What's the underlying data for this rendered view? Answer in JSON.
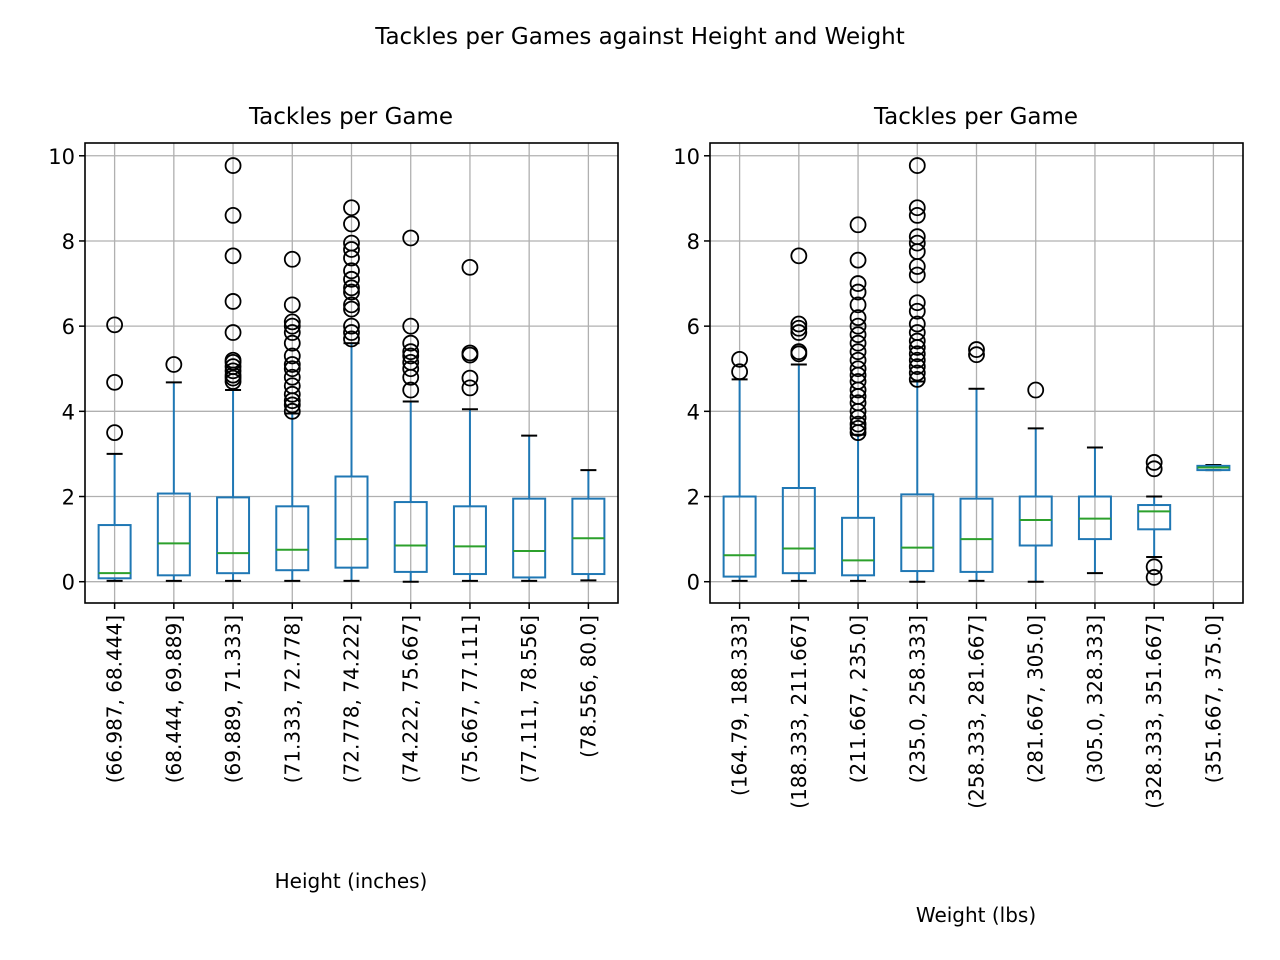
{
  "figure": {
    "suptitle": "Tackles per Games against Height and Weight"
  },
  "colors": {
    "box": "#1f77b4",
    "median": "#2ca02c",
    "grid": "#b0b0b0",
    "flier": "#000000",
    "axes": "#000000"
  },
  "chart_data": [
    {
      "type": "boxplot",
      "title": "Tackles per Game",
      "xlabel": "Height (inches)",
      "ylabel": "",
      "ylim": [
        -0.5,
        10.3
      ],
      "yticks": [
        0,
        2,
        4,
        6,
        8,
        10
      ],
      "grid": true,
      "categories": [
        "(66.987, 68.444]",
        "(68.444, 69.889]",
        "(69.889, 71.333]",
        "(71.333, 72.778]",
        "(72.778, 74.222]",
        "(74.222, 75.667]",
        "(75.667, 77.111]",
        "(77.111, 78.556]",
        "(78.556, 80.0]"
      ],
      "boxes": [
        {
          "whislo": 0.02,
          "q1": 0.08,
          "med": 0.2,
          "q3": 1.33,
          "whishi": 3.0,
          "fliers": [
            3.5,
            4.68,
            6.03
          ]
        },
        {
          "whislo": 0.02,
          "q1": 0.15,
          "med": 0.9,
          "q3": 2.07,
          "whishi": 4.68,
          "fliers": [
            5.1
          ]
        },
        {
          "whislo": 0.02,
          "q1": 0.2,
          "med": 0.67,
          "q3": 1.98,
          "whishi": 4.5,
          "fliers": [
            4.7,
            4.78,
            4.85,
            4.95,
            5.05,
            5.15,
            5.2,
            5.85,
            6.58,
            7.65,
            8.6,
            9.77
          ]
        },
        {
          "whislo": 0.02,
          "q1": 0.27,
          "med": 0.75,
          "q3": 1.77,
          "whishi": 3.95,
          "fliers": [
            4.0,
            4.15,
            4.25,
            4.4,
            4.6,
            4.8,
            5.0,
            5.1,
            5.3,
            5.6,
            5.85,
            6.0,
            6.1,
            6.5,
            7.57
          ]
        },
        {
          "whislo": 0.02,
          "q1": 0.33,
          "med": 1.0,
          "q3": 2.47,
          "whishi": 5.6,
          "fliers": [
            5.7,
            5.85,
            6.0,
            6.4,
            6.5,
            6.8,
            6.9,
            7.1,
            7.3,
            7.6,
            7.8,
            7.95,
            8.4,
            8.78
          ]
        },
        {
          "whislo": 0.0,
          "q1": 0.23,
          "med": 0.85,
          "q3": 1.87,
          "whishi": 4.23,
          "fliers": [
            4.5,
            4.8,
            5.0,
            5.15,
            5.3,
            5.4,
            5.6,
            6.0,
            8.07
          ]
        },
        {
          "whislo": 0.02,
          "q1": 0.18,
          "med": 0.83,
          "q3": 1.77,
          "whishi": 4.05,
          "fliers": [
            4.55,
            4.78,
            5.32,
            5.37,
            7.38
          ]
        },
        {
          "whislo": 0.02,
          "q1": 0.1,
          "med": 0.72,
          "q3": 1.95,
          "whishi": 3.43,
          "fliers": []
        },
        {
          "whislo": 0.03,
          "q1": 0.18,
          "med": 1.02,
          "q3": 1.95,
          "whishi": 2.62,
          "fliers": []
        }
      ]
    },
    {
      "type": "boxplot",
      "title": "Tackles per Game",
      "xlabel": "Weight (lbs)",
      "ylabel": "",
      "ylim": [
        -0.5,
        10.3
      ],
      "yticks": [
        0,
        2,
        4,
        6,
        8,
        10
      ],
      "grid": true,
      "categories": [
        "(164.79, 188.333]",
        "(188.333, 211.667]",
        "(211.667, 235.0]",
        "(235.0, 258.333]",
        "(258.333, 281.667]",
        "(281.667, 305.0]",
        "(305.0, 328.333]",
        "(328.333, 351.667]",
        "(351.667, 375.0]"
      ],
      "boxes": [
        {
          "whislo": 0.02,
          "q1": 0.12,
          "med": 0.62,
          "q3": 2.0,
          "whishi": 4.75,
          "fliers": [
            4.93,
            5.22
          ]
        },
        {
          "whislo": 0.02,
          "q1": 0.2,
          "med": 0.78,
          "q3": 2.2,
          "whishi": 5.1,
          "fliers": [
            5.35,
            5.4,
            5.85,
            5.95,
            6.05,
            7.65
          ]
        },
        {
          "whislo": 0.02,
          "q1": 0.15,
          "med": 0.5,
          "q3": 1.5,
          "whishi": 3.45,
          "fliers": [
            3.5,
            3.6,
            3.7,
            3.85,
            4.0,
            4.2,
            4.35,
            4.5,
            4.7,
            4.85,
            5.0,
            5.2,
            5.4,
            5.6,
            5.8,
            6.0,
            6.2,
            6.5,
            6.8,
            7.0,
            7.55,
            8.38
          ]
        },
        {
          "whislo": 0.0,
          "q1": 0.25,
          "med": 0.8,
          "q3": 2.05,
          "whishi": 4.7,
          "fliers": [
            4.75,
            4.9,
            5.05,
            5.2,
            5.35,
            5.5,
            5.65,
            5.85,
            6.05,
            6.35,
            6.55,
            7.2,
            7.4,
            7.75,
            7.95,
            8.1,
            8.6,
            8.78,
            9.77
          ]
        },
        {
          "whislo": 0.02,
          "q1": 0.23,
          "med": 1.0,
          "q3": 1.95,
          "whishi": 4.53,
          "fliers": [
            5.33,
            5.45
          ]
        },
        {
          "whislo": 0.0,
          "q1": 0.85,
          "med": 1.45,
          "q3": 2.0,
          "whishi": 3.6,
          "fliers": [
            4.5
          ]
        },
        {
          "whislo": 0.2,
          "q1": 1.0,
          "med": 1.48,
          "q3": 2.0,
          "whishi": 3.15,
          "fliers": []
        },
        {
          "whislo": 0.58,
          "q1": 1.23,
          "med": 1.65,
          "q3": 1.8,
          "whishi": 2.0,
          "fliers": [
            0.1,
            0.35,
            2.65,
            2.8
          ]
        },
        {
          "whislo": 2.62,
          "q1": 2.62,
          "med": 2.68,
          "q3": 2.72,
          "whishi": 2.74,
          "fliers": []
        }
      ]
    }
  ]
}
